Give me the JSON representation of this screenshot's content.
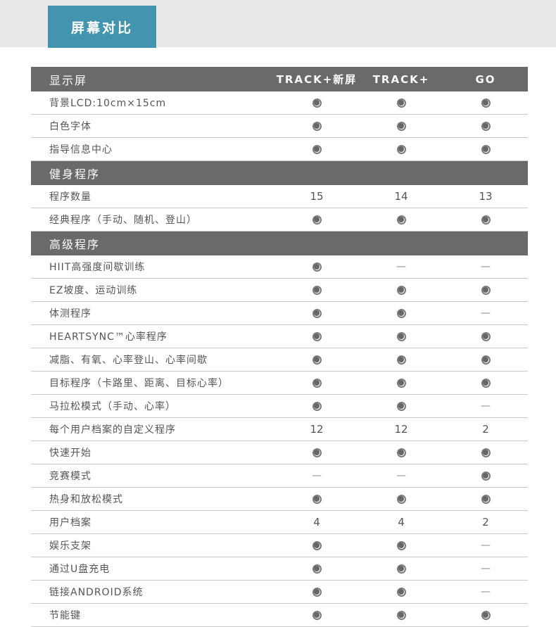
{
  "header": {
    "title": "屏幕对比"
  },
  "table": {
    "head": {
      "label": "显示屏",
      "columns": [
        "TRACK+新屏",
        "TRACK+",
        "GO"
      ]
    },
    "sections": [
      {
        "bar": null,
        "rows": [
          {
            "label": "背景LCD:10cm×15cm",
            "values": [
              "dot",
              "dot",
              "dot"
            ]
          },
          {
            "label": "白色字体",
            "values": [
              "dot",
              "dot",
              "dot"
            ]
          },
          {
            "label": "指导信息中心",
            "values": [
              "dot",
              "dot",
              "dot"
            ]
          }
        ]
      },
      {
        "bar": "健身程序",
        "rows": [
          {
            "label": "程序数量",
            "values": [
              "15",
              "14",
              "13"
            ]
          },
          {
            "label": "经典程序（手动、随机、登山）",
            "values": [
              "dot",
              "dot",
              "dot"
            ]
          }
        ]
      },
      {
        "bar": "高级程序",
        "rows": [
          {
            "label": "HIIT高强度间歇训练",
            "values": [
              "dot",
              "dash",
              "dash"
            ]
          },
          {
            "label": "EZ坡度、运动训练",
            "values": [
              "dot",
              "dot",
              "dot"
            ]
          },
          {
            "label": "体测程序",
            "values": [
              "dot",
              "dot",
              "dash"
            ]
          },
          {
            "label": "HEARTSYNC™心率程序",
            "values": [
              "dot",
              "dot",
              "dot"
            ]
          },
          {
            "label": "减脂、有氧、心率登山、心率间歇",
            "values": [
              "dot",
              "dot",
              "dot"
            ]
          },
          {
            "label": "目标程序（卡路里、距离、目标心率）",
            "values": [
              "dot",
              "dot",
              "dot"
            ]
          },
          {
            "label": "马拉松模式（手动、心率）",
            "values": [
              "dot",
              "dot",
              "dash"
            ]
          },
          {
            "label": "每个用户档案的自定义程序",
            "values": [
              "12",
              "12",
              "2"
            ]
          },
          {
            "label": "快速开始",
            "values": [
              "dot",
              "dot",
              "dot"
            ]
          },
          {
            "label": "竞赛模式",
            "values": [
              "dash",
              "dash",
              "dot"
            ]
          },
          {
            "label": "热身和放松模式",
            "values": [
              "dot",
              "dot",
              "dot"
            ]
          },
          {
            "label": "用户档案",
            "values": [
              "4",
              "4",
              "2"
            ]
          },
          {
            "label": "娱乐支架",
            "values": [
              "dot",
              "dot",
              "dash"
            ]
          },
          {
            "label": "通过U盘充电",
            "values": [
              "dot",
              "dot",
              "dash"
            ]
          },
          {
            "label": "链接ANDROID系统",
            "values": [
              "dot",
              "dot",
              "dash"
            ]
          },
          {
            "label": "节能键",
            "values": [
              "dot",
              "dot",
              "dot"
            ]
          }
        ]
      }
    ]
  },
  "icons": {
    "dot": "feature-included-radio-icon",
    "dash_glyph": "—"
  },
  "colors": {
    "accent_teal": "#4294af",
    "bar_gray": "#6a6a6a",
    "band_gray": "#e8e8e8",
    "dot_gray": "#666666",
    "divider_gray": "#c9c9c9",
    "text_gray": "#555555"
  }
}
